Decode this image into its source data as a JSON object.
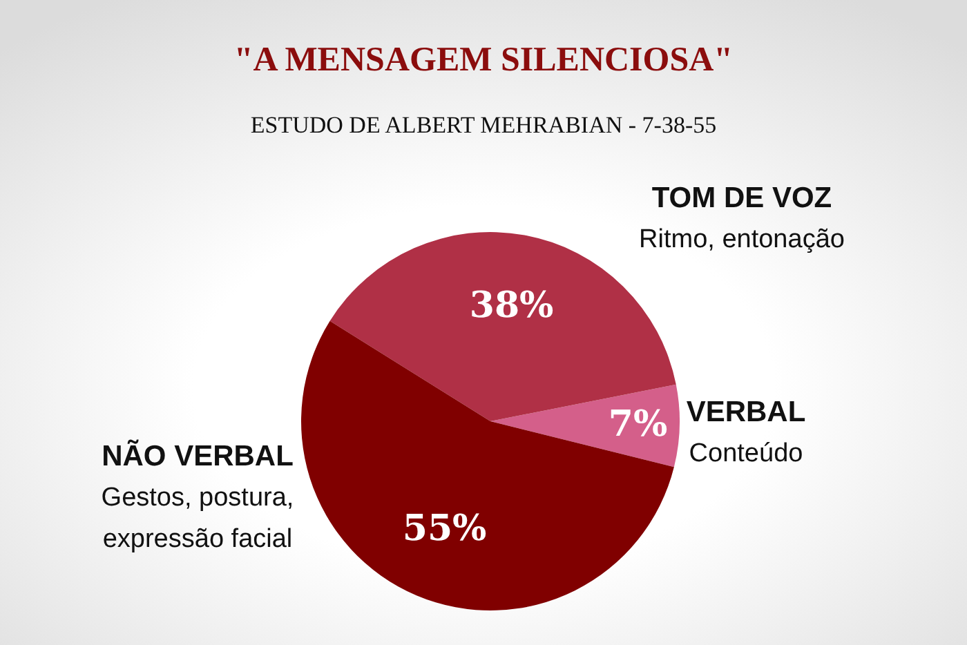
{
  "chart_data": {
    "type": "pie",
    "title": "\"A MENSAGEM SILENCIOSA\"",
    "subtitle": "ESTUDO DE ALBERT MEHRABIAN - 7-38-55",
    "categories": [
      "VERBAL",
      "TOM DE VOZ",
      "NÃO VERBAL"
    ],
    "values": [
      7,
      38,
      55
    ],
    "colors": [
      "#d45f8a",
      "#b03046",
      "#800000"
    ],
    "value_labels": [
      "7%",
      "38%",
      "55%"
    ],
    "annotations": [
      "Conteúdo",
      "Ritmo, entonação",
      "Gestos, postura, expressão facial"
    ],
    "legend": false
  }
}
